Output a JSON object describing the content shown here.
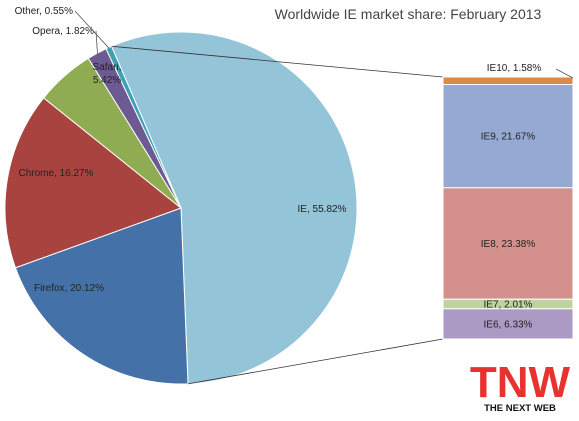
{
  "chart_data": {
    "type": "pie",
    "title": "Worldwide IE market share: February 2013",
    "pie": {
      "slices": [
        {
          "label": "IE",
          "value": 55.82,
          "display": "IE, 55.82%",
          "color": "#93c4d7"
        },
        {
          "label": "Firefox",
          "value": 20.12,
          "display": "Firefox, 20.12%",
          "color": "#4472a8"
        },
        {
          "label": "Chrome",
          "value": 16.27,
          "display": "Chrome, 16.27%",
          "color": "#a8433f"
        },
        {
          "label": "Safari",
          "value": 5.42,
          "display": "Safari, 5.42%",
          "color": "#8fac53"
        },
        {
          "label": "Opera",
          "value": 1.82,
          "display": "Opera, 1.82%",
          "color": "#6e5a92"
        },
        {
          "label": "Other",
          "value": 0.55,
          "display": "Other, 0.55%",
          "color": "#3da0b5"
        }
      ]
    },
    "breakdown": {
      "parent": "IE",
      "segments": [
        {
          "label": "IE10",
          "value": 1.58,
          "display": "IE10, 1.58%",
          "color": "#d98a4a"
        },
        {
          "label": "IE9",
          "value": 21.67,
          "display": "IE9, 21.67%",
          "color": "#95a9d3"
        },
        {
          "label": "IE8",
          "value": 23.38,
          "display": "IE8, 23.38%",
          "color": "#d4908c"
        },
        {
          "label": "IE7",
          "value": 2.01,
          "display": "IE7, 2.01%",
          "color": "#bdd49c"
        },
        {
          "label": "IE6",
          "value": 6.33,
          "display": "IE6, 6.33%",
          "color": "#ab9ac4"
        }
      ]
    }
  },
  "logo": {
    "text": "TNW",
    "tagline": "THE NEXT WEB",
    "color": "#e8322f"
  }
}
